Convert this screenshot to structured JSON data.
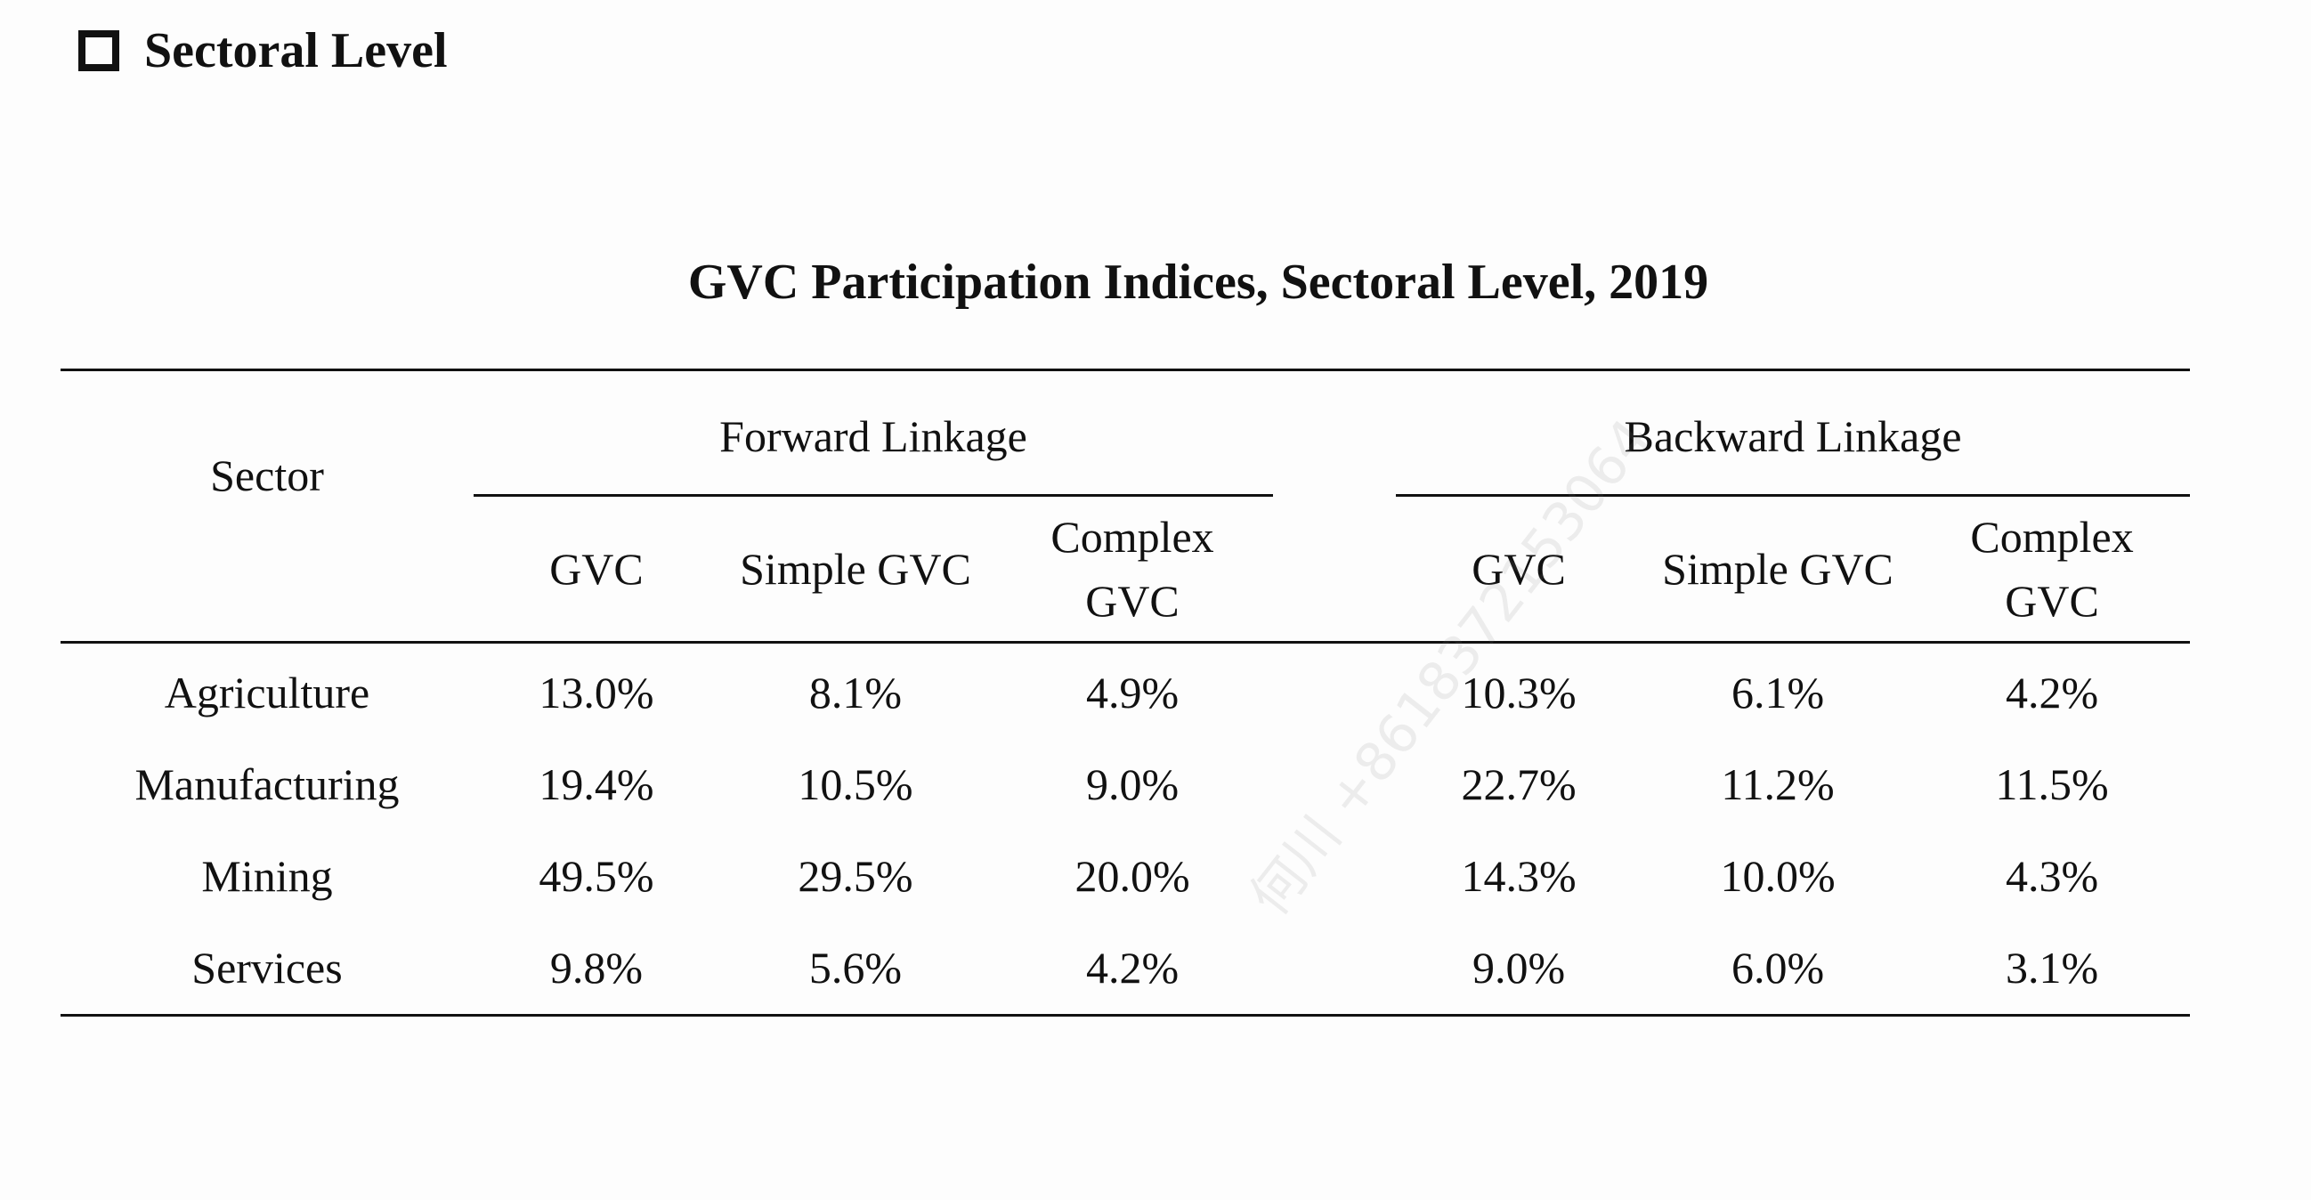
{
  "section": {
    "heading": "Sectoral Level",
    "icon": "checkbox-icon"
  },
  "table": {
    "title": "GVC Participation Indices, Sectoral Level, 2019",
    "sector_header": "Sector",
    "groups": {
      "forward": "Forward Linkage",
      "backward": "Backward Linkage"
    },
    "subheaders": {
      "gvc": "GVC",
      "simple": "Simple GVC",
      "complex_line1": "Complex",
      "complex_line2": "GVC"
    },
    "rows": [
      {
        "sector": "Agriculture",
        "f_gvc": "13.0%",
        "f_simple": "8.1%",
        "f_complex": "4.9%",
        "b_gvc": "10.3%",
        "b_simple": "6.1%",
        "b_complex": "4.2%"
      },
      {
        "sector": "Manufacturing",
        "f_gvc": "19.4%",
        "f_simple": "10.5%",
        "f_complex": "9.0%",
        "b_gvc": "22.7%",
        "b_simple": "11.2%",
        "b_complex": "11.5%"
      },
      {
        "sector": "Mining",
        "f_gvc": "49.5%",
        "f_simple": "29.5%",
        "f_complex": "20.0%",
        "b_gvc": "14.3%",
        "b_simple": "10.0%",
        "b_complex": "4.3%"
      },
      {
        "sector": "Services",
        "f_gvc": "9.8%",
        "f_simple": "5.6%",
        "f_complex": "4.2%",
        "b_gvc": "9.0%",
        "b_simple": "6.0%",
        "b_complex": "3.1%"
      }
    ]
  },
  "watermark": "何川 +8618372153064"
}
